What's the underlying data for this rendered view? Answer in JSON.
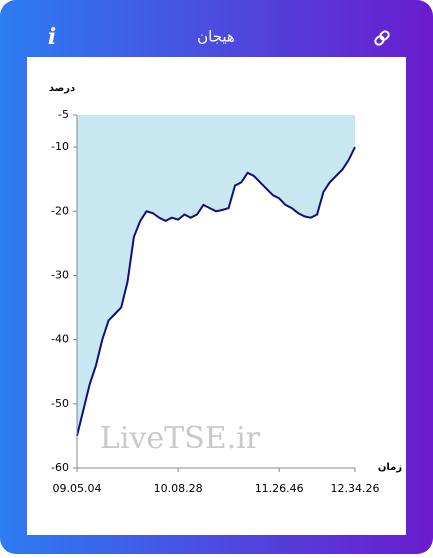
{
  "header": {
    "title": "هیجان",
    "info": "i"
  },
  "watermark": "LiveTSE.ir",
  "chart_data": {
    "type": "area",
    "y_label": "درصد",
    "x_label": "زمان",
    "categories": [
      "09.05.04",
      null,
      null,
      null,
      null,
      null,
      null,
      null,
      null,
      null,
      null,
      null,
      null,
      null,
      null,
      null,
      "10.08.28",
      null,
      null,
      null,
      null,
      null,
      null,
      null,
      null,
      null,
      null,
      null,
      null,
      null,
      null,
      null,
      "11.26.46",
      null,
      null,
      null,
      null,
      null,
      null,
      null,
      null,
      null,
      null,
      null,
      "12.34.26"
    ],
    "series": [
      {
        "color": "#10107a",
        "fill": "#c8e7f0",
        "values": [
          -55,
          -51,
          -47,
          -44,
          -40,
          -37,
          -36,
          -35,
          -31,
          -24,
          -21.5,
          -20,
          -20.3,
          -21,
          -21.5,
          -21,
          -21.3,
          -20.5,
          -21,
          -20.5,
          -19,
          -19.5,
          -20,
          -19.8,
          -19.5,
          -16,
          -15.5,
          -14,
          -14.5,
          -15.5,
          -16.5,
          -17.5,
          -18,
          -19,
          -19.5,
          -20.3,
          -20.8,
          -21,
          -20.5,
          -17,
          -15.5,
          -14.5,
          -13.5,
          -12,
          -10
        ]
      }
    ],
    "ylim": [
      -60,
      -5
    ],
    "yticks": [
      -5,
      -10,
      -20,
      -30,
      -40,
      -50,
      -60
    ]
  }
}
